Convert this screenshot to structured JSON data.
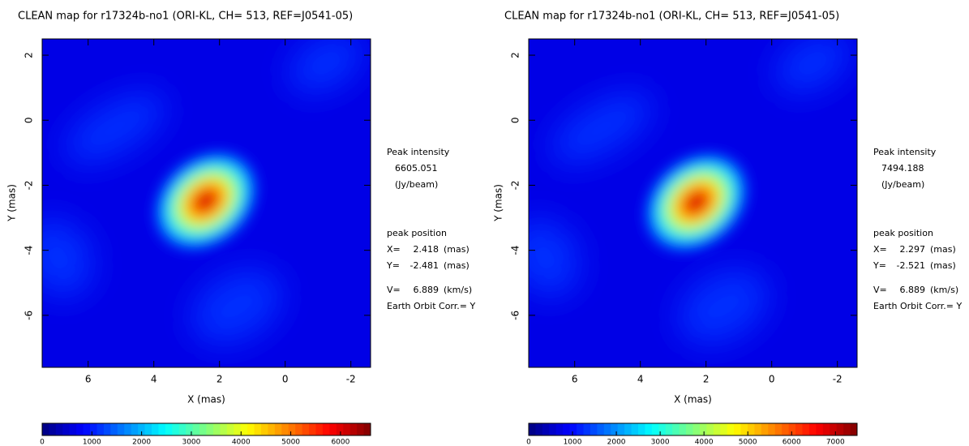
{
  "chart_data": [
    {
      "type": "heatmap",
      "title": "CLEAN map for r17324b-no1 (ORI-KL, CH= 513, REF=J0541-05)",
      "x_label": "X (mas)",
      "y_label": "Y (mas)",
      "xlim": [
        7.4,
        -2.6
      ],
      "ylim": [
        -7.6,
        2.5
      ],
      "xticks": [
        6,
        4,
        2,
        0,
        -2
      ],
      "yticks": [
        2,
        0,
        -2,
        -4,
        -6
      ],
      "peak_intensity_label": "Peak intensity",
      "peak_intensity": 6605.051,
      "intensity_unit": "(Jy/beam)",
      "peak_position_label": "peak position",
      "peak_x_label": "X=",
      "peak_x": 2.418,
      "peak_y_label": "Y=",
      "peak_y": -2.481,
      "position_unit": "(mas)",
      "velocity_label": "V=",
      "velocity": 6.889,
      "velocity_unit": "(km/s)",
      "earth_orbit": "Earth Orbit Corr.= Y",
      "zlim": [
        0,
        6605.051
      ],
      "zticks": [
        0,
        1000,
        2000,
        3000,
        4000,
        5000,
        6000
      ]
    },
    {
      "type": "heatmap",
      "title": "CLEAN map for r17324b-no1 (ORI-KL, CH= 513, REF=J0541-05)",
      "x_label": "X (mas)",
      "y_label": "Y (mas)",
      "xlim": [
        7.4,
        -2.6
      ],
      "ylim": [
        -7.6,
        2.5
      ],
      "xticks": [
        6,
        4,
        2,
        0,
        -2
      ],
      "yticks": [
        2,
        0,
        -2,
        -4,
        -6
      ],
      "peak_intensity_label": "Peak intensity",
      "peak_intensity": 7494.188,
      "intensity_unit": "(Jy/beam)",
      "peak_position_label": "peak position",
      "peak_x_label": "X=",
      "peak_x": 2.297,
      "peak_y_label": "Y=",
      "peak_y": -2.521,
      "position_unit": "(mas)",
      "velocity_label": "V=",
      "velocity": 6.889,
      "velocity_unit": "(km/s)",
      "earth_orbit": "Earth Orbit Corr.= Y",
      "zlim": [
        0,
        7494.188
      ],
      "zticks": [
        0,
        1000,
        2000,
        3000,
        4000,
        5000,
        6000,
        7000
      ]
    }
  ]
}
